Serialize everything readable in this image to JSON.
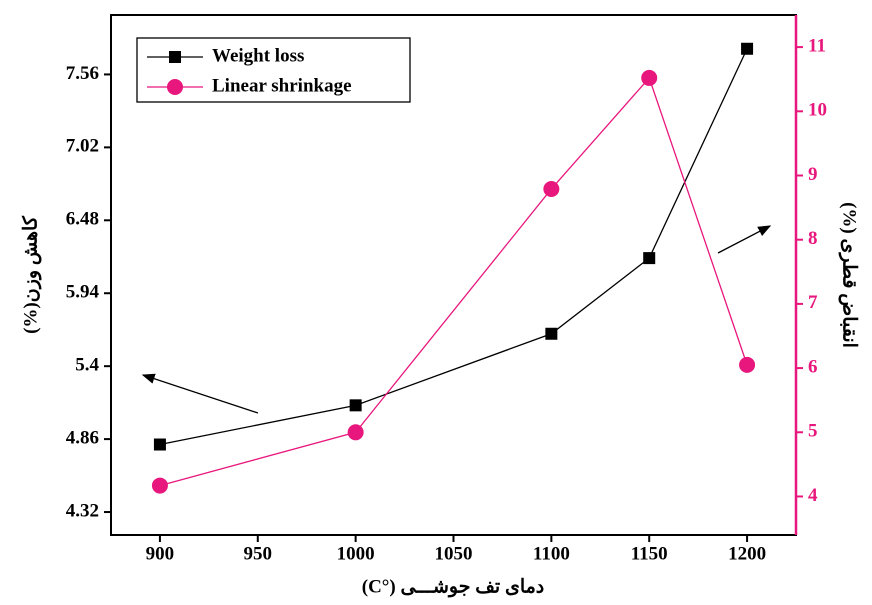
{
  "chart_data": {
    "type": "line",
    "x_label": "دمای تف جوشـــی (°C)",
    "y_label": "کاهش وزن(%)",
    "y2_label": "انقباض قطری (%)",
    "x": [
      900,
      1000,
      1100,
      1150,
      1200
    ],
    "series": [
      {
        "name": "Weight loss",
        "color": "#000000",
        "marker": "square",
        "values": [
          4.82,
          5.11,
          5.64,
          6.2,
          7.75
        ]
      },
      {
        "name": "Linear shrinkage",
        "color": "#e8177d",
        "marker": "circle",
        "axis": "y2",
        "values": [
          4.17,
          5.0,
          8.79,
          10.52,
          6.05
        ]
      }
    ],
    "xlim": [
      875,
      1225
    ],
    "xticks": [
      900,
      950,
      1000,
      1050,
      1100,
      1150,
      1200
    ],
    "ylim": [
      4.15,
      8.0
    ],
    "yticks": [
      4.32,
      4.86,
      5.4,
      5.94,
      6.48,
      7.02,
      7.56
    ],
    "y2lim": [
      3.4,
      11.5
    ],
    "y2ticks": [
      4,
      5,
      6,
      7,
      8,
      9,
      10,
      11
    ],
    "y2color": "#e8177d",
    "legend": "upper left"
  }
}
